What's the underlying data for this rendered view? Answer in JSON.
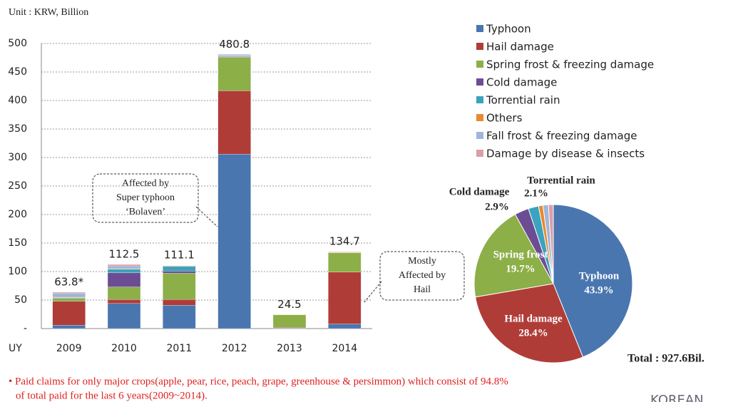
{
  "chart_data": [
    {
      "type": "stacked_bar",
      "unit_label": "Unit : KRW, Billion",
      "x_label": "UY",
      "categories": [
        "2009",
        "2010",
        "2011",
        "2012",
        "2013",
        "2014"
      ],
      "series": [
        {
          "name": "Typhoon",
          "color": "#4a76b0",
          "values": [
            6,
            44,
            41,
            306,
            1,
            8
          ]
        },
        {
          "name": "Hail damage",
          "color": "#b03c38",
          "values": [
            42,
            7,
            10,
            111,
            1,
            91
          ]
        },
        {
          "name": "Spring frost & freezing damage",
          "color": "#8caf48",
          "values": [
            5,
            22,
            46,
            59,
            22,
            34
          ]
        },
        {
          "name": "Cold damage",
          "color": "#6c4d94",
          "values": [
            0,
            25,
            4,
            1,
            0,
            0
          ]
        },
        {
          "name": "Torrential rain",
          "color": "#3aa3bd",
          "values": [
            1,
            6,
            8,
            1,
            0,
            0
          ]
        },
        {
          "name": "Others",
          "color": "#e88a2e",
          "values": [
            1,
            1,
            1,
            0.5,
            0.5,
            0.7
          ]
        },
        {
          "name": "Fall frost & freezing damage",
          "color": "#9fb6d8",
          "values": [
            7,
            5,
            0.6,
            2.3,
            0,
            0
          ]
        },
        {
          "name": "Damage by disease & insects",
          "color": "#d9a0a6",
          "values": [
            1.8,
            2.5,
            0.5,
            0,
            0,
            1
          ]
        }
      ],
      "totals": [
        63.8,
        112.5,
        111.1,
        480.8,
        24.5,
        134.7
      ],
      "total_labels": [
        "63.8*",
        "112.5",
        "111.1",
        "480.8",
        "24.5",
        "134.7"
      ],
      "ylim": [
        0,
        500
      ],
      "yticks": [
        {
          "value": 0,
          "label": "-"
        },
        50,
        100,
        150,
        200,
        250,
        300,
        350,
        400,
        450,
        500
      ],
      "grid": true,
      "annotations": [
        {
          "lines": [
            "Affected by",
            "Super typhoon",
            "‘Bolaven’"
          ]
        },
        {
          "lines": [
            "Mostly",
            "Affected by",
            "Hail"
          ]
        }
      ]
    },
    {
      "type": "pie",
      "categories": [
        "Typhoon",
        "Hail damage",
        "Spring frost & freezing damage",
        "Cold damage",
        "Torrential rain",
        "Others",
        "Fall frost & freezing damage",
        "Damage by disease & insects"
      ],
      "values": [
        43.9,
        28.4,
        19.7,
        2.9,
        2.1,
        0.9,
        1.1,
        1.0
      ],
      "colors": [
        "#4a76b0",
        "#b03c38",
        "#8caf48",
        "#6c4d94",
        "#3aa3bd",
        "#e88a2e",
        "#9fb6d8",
        "#d9a0a6"
      ],
      "slice_labels": [
        "Typhoon",
        "Hail damage",
        "Spring frost",
        "Cold damage",
        "Torrential rain",
        null,
        null,
        null
      ],
      "value_labels": [
        "43.9%",
        "28.4%",
        "19.7%",
        "2.9%",
        "2.1%",
        null,
        null,
        null
      ],
      "total": "Total : 927.6Bil."
    }
  ],
  "footnote": [
    "• Paid claims for only major crops(apple, pear, rice, peach, grape, greenhouse & persimmon) which consist of 94.8%",
    "of total paid for the last 6 years(2009~2014)."
  ],
  "logo": "KOREAN"
}
